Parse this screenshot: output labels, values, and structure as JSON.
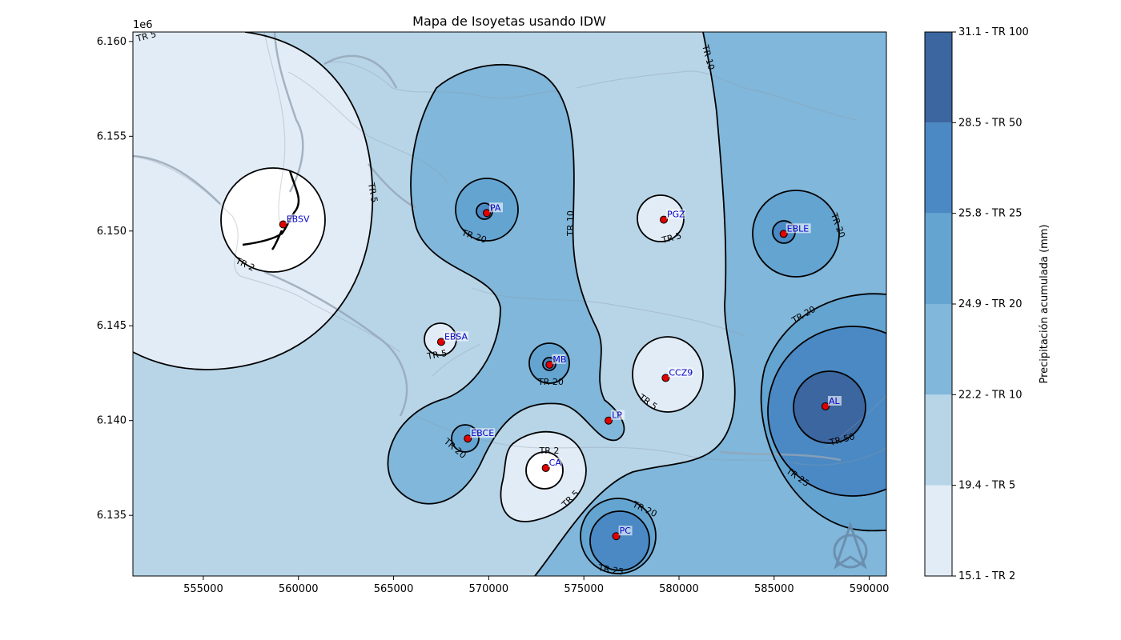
{
  "chart_data": {
    "type": "contour",
    "title": "Mapa de Isoyetas usando IDW",
    "xlabel": "",
    "ylabel": "",
    "y_offset_label": "1e6",
    "xlim": [
      551300,
      590900
    ],
    "ylim": [
      6131800,
      6160500
    ],
    "x_ticks": [
      555000,
      560000,
      565000,
      570000,
      575000,
      580000,
      585000,
      590000
    ],
    "x_tick_labels": [
      "555000",
      "560000",
      "565000",
      "570000",
      "575000",
      "580000",
      "585000",
      "590000"
    ],
    "y_ticks": [
      6135000,
      6140000,
      6145000,
      6150000,
      6155000,
      6160000
    ],
    "y_tick_labels": [
      "6.135",
      "6.140",
      "6.145",
      "6.150",
      "6.155",
      "6.160"
    ],
    "colorbar": {
      "label": "Precipitación acumulada (mm)",
      "levels": [
        {
          "label": "15.1 - TR 2",
          "color": "#e2ecf6"
        },
        {
          "label": "19.4 - TR 5",
          "color": "#b8d5e8"
        },
        {
          "label": "22.2 - TR 10",
          "color": "#80b7da"
        },
        {
          "label": "24.9 - TR 20",
          "color": "#64a4d1"
        },
        {
          "label": "25.8 - TR 25",
          "color": "#4a89c4"
        },
        {
          "label": "28.5 - TR 50",
          "color": "#3b66a0"
        },
        {
          "label": "31.1 - TR 100",
          "color": ""
        }
      ]
    },
    "stations": [
      {
        "name": "EBSV",
        "x": 559200,
        "y": 6150350
      },
      {
        "name": "PA",
        "x": 569900,
        "y": 6150950
      },
      {
        "name": "PGZ",
        "x": 579200,
        "y": 6150600
      },
      {
        "name": "EBLE",
        "x": 585500,
        "y": 6149850
      },
      {
        "name": "EBSA",
        "x": 567500,
        "y": 6144150
      },
      {
        "name": "MB",
        "x": 573200,
        "y": 6142950
      },
      {
        "name": "CCZ9",
        "x": 579300,
        "y": 6142250
      },
      {
        "name": "AL",
        "x": 587700,
        "y": 6140750
      },
      {
        "name": "LP",
        "x": 576300,
        "y": 6140000
      },
      {
        "name": "EBCE",
        "x": 568900,
        "y": 6139050
      },
      {
        "name": "CA",
        "x": 573000,
        "y": 6137500
      },
      {
        "name": "PC",
        "x": 576700,
        "y": 6133900
      }
    ],
    "contour_labels": [
      "TR 5",
      "TR 10",
      "TR 5",
      "TR 2",
      "TR 20",
      "TR 10",
      "TR 5",
      "TR 20",
      "TR 20",
      "TR 5",
      "TR 20",
      "TR 5",
      "TR 20",
      "TR 2",
      "TR 5",
      "TR 20",
      "TR 25",
      "TR 25",
      "TR 50"
    ]
  }
}
